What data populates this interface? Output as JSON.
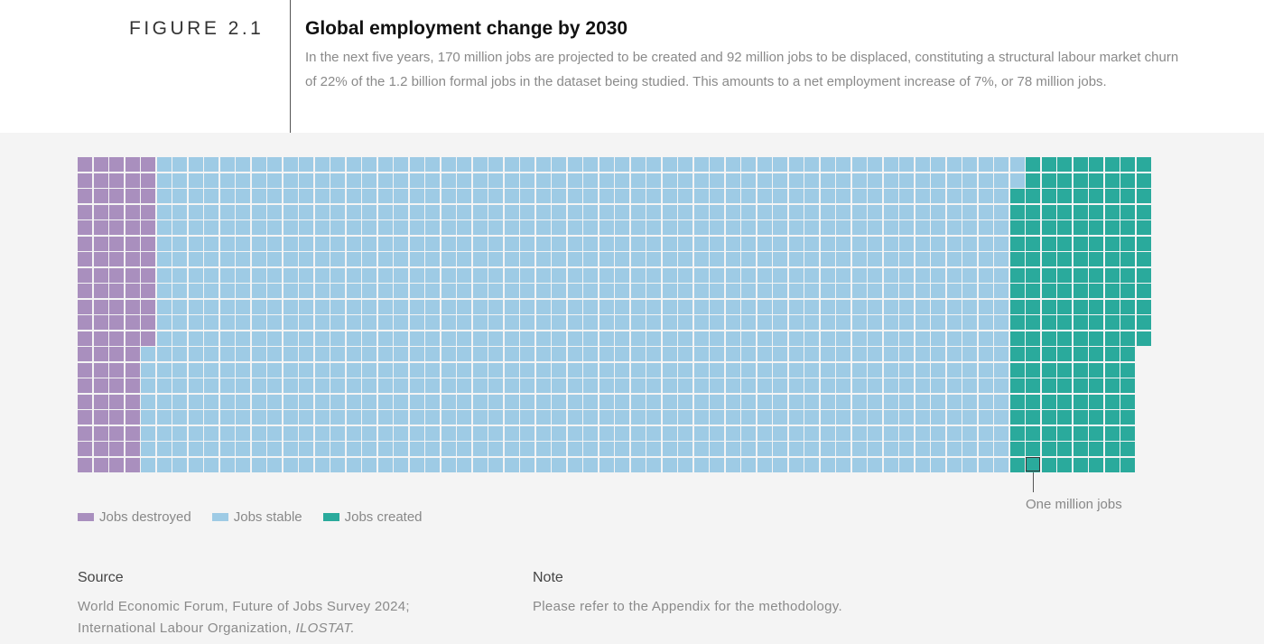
{
  "header": {
    "figure_label": "FIGURE 2.1",
    "title": "Global employment change by 2030",
    "description": "In the next five years, 170 million jobs are projected to be created and 92 million jobs to be displaced, constituting a structural labour market churn of 22% of the 1.2 billion formal jobs in the dataset being studied. This amounts to a net employment increase of 7%, or 78 million jobs."
  },
  "chart_data": {
    "type": "waffle",
    "unit_label": "One million jobs",
    "series": [
      {
        "name": "Jobs destroyed",
        "value": 92,
        "color": "#a98fbe"
      },
      {
        "name": "Jobs stable",
        "value": 1090,
        "color": "#9ecbe5"
      },
      {
        "name": "Jobs created",
        "value": 170,
        "color": "#2aaa9c"
      }
    ],
    "legend_position": "bottom-left"
  },
  "footer": {
    "source_heading": "Source",
    "source_line1": "World Economic Forum, Future of Jobs Survey 2024;",
    "source_line2_prefix": "International Labour Organization, ",
    "source_line2_italic": "ILOSTAT.",
    "note_heading": "Note",
    "note_text": "Please refer to the Appendix for the methodology."
  }
}
